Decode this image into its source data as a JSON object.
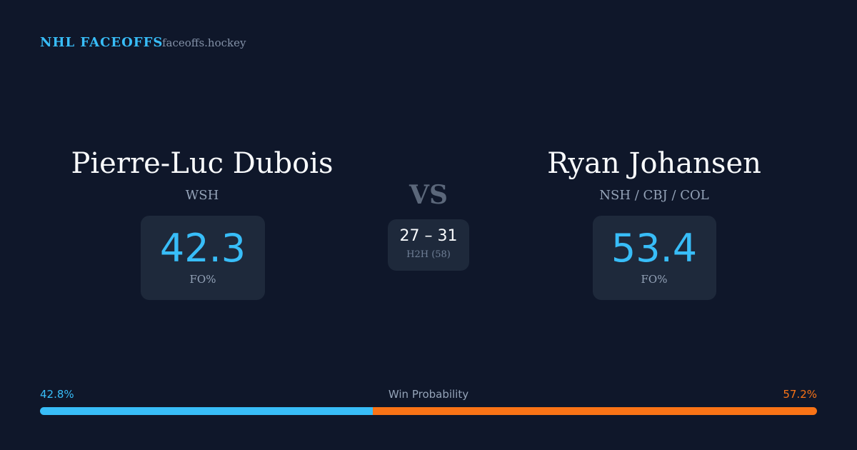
{
  "header": {
    "title": "NHL FACEOFFS",
    "site": "faceoffs.hockey"
  },
  "players": [
    {
      "name": "Pierre-Luc Dubois",
      "teams": "WSH",
      "fo_pct": 42.3,
      "fo_label": "FO%"
    },
    {
      "name": "Ryan Johansen",
      "teams": "NSH / CBJ / COL",
      "fo_pct": 53.4,
      "fo_label": "FO%"
    }
  ],
  "versus": {
    "label": "VS",
    "score": "27 – 31",
    "h2h": "H2H (58)"
  },
  "win_probability": {
    "label": "Win Probability",
    "home": {
      "value": 42.8,
      "value_label": "42.8%",
      "color": "#38bdf8"
    },
    "away": {
      "value": 57.2,
      "value_label": "57.2%",
      "color": "#f97316"
    }
  }
}
